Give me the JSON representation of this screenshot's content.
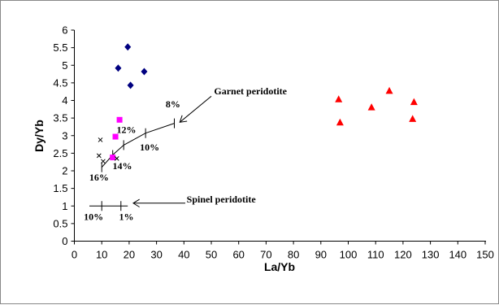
{
  "chart_data": {
    "type": "scatter",
    "xlabel": "La/Yb",
    "ylabel": "Dy/Yb",
    "xlim": [
      0,
      150
    ],
    "ylim": [
      0,
      6
    ],
    "x_ticks": [
      "0",
      "10",
      "20",
      "30",
      "40",
      "50",
      "60",
      "70",
      "80",
      "90",
      "100",
      "110",
      "120",
      "130",
      "140",
      "150"
    ],
    "y_ticks": [
      "0",
      "0.5",
      "1",
      "1.5",
      "2",
      "2.5",
      "3",
      "3.5",
      "4",
      "4.5",
      "5",
      "5.5",
      "6"
    ],
    "grid": false,
    "legend": "none",
    "series": [
      {
        "marker": "diamond",
        "color": "#000080",
        "points": [
          [
            19.5,
            5.52
          ],
          [
            16,
            4.92
          ],
          [
            25.5,
            4.82
          ],
          [
            20.5,
            4.43
          ]
        ]
      },
      {
        "marker": "square",
        "color": "#ff00ff",
        "points": [
          [
            16.5,
            3.45
          ],
          [
            15,
            2.97
          ],
          [
            14,
            2.38
          ]
        ]
      },
      {
        "marker": "x",
        "color": "#000000",
        "points": [
          [
            9.5,
            2.88
          ],
          [
            9,
            2.43
          ],
          [
            10.5,
            2.27
          ],
          [
            15.5,
            2.35
          ]
        ]
      },
      {
        "marker": "triangle",
        "color": "#ff0000",
        "points": [
          [
            96.5,
            4.03
          ],
          [
            97,
            3.37
          ],
          [
            108.5,
            3.8
          ],
          [
            115,
            4.27
          ],
          [
            124,
            3.95
          ],
          [
            123.5,
            3.47
          ]
        ]
      }
    ],
    "melting_curves": [
      {
        "label": "Garnet peridotite",
        "points": [
          [
            10,
            2.1
          ],
          [
            14,
            2.45
          ],
          [
            18,
            2.73
          ],
          [
            26,
            3.07
          ],
          [
            36.5,
            3.35
          ]
        ],
        "ticks": [
          [
            10,
            2.1
          ],
          [
            14,
            2.45
          ],
          [
            18,
            2.73
          ],
          [
            26,
            3.07
          ],
          [
            36.5,
            3.35
          ]
        ]
      },
      {
        "label": "Spinel peridotite",
        "points": [
          [
            5.5,
            1.0
          ],
          [
            19.5,
            1.0
          ]
        ],
        "ticks": [
          [
            10,
            1.0
          ],
          [
            17,
            1.0
          ]
        ]
      }
    ],
    "annotations": [
      {
        "text": "Garnet peridotite",
        "x": 51,
        "y": 4.17,
        "anchor": "start"
      },
      {
        "text": "Spinel peridotite",
        "x": 41,
        "y": 1.1,
        "anchor": "start"
      },
      {
        "text": "8%",
        "x": 36,
        "y": 3.8,
        "anchor": "middle"
      },
      {
        "text": "12%",
        "x": 19,
        "y": 3.08,
        "anchor": "middle"
      },
      {
        "text": "10%",
        "x": 27.5,
        "y": 2.58,
        "anchor": "middle"
      },
      {
        "text": "14%",
        "x": 17.5,
        "y": 2.05,
        "anchor": "middle"
      },
      {
        "text": "16%",
        "x": 9,
        "y": 1.72,
        "anchor": "middle"
      },
      {
        "text": "10%",
        "x": 7,
        "y": 0.6,
        "anchor": "middle"
      },
      {
        "text": "1%",
        "x": 19,
        "y": 0.6,
        "anchor": "middle"
      }
    ],
    "arrows": [
      {
        "from": [
          50,
          4.12
        ],
        "to": [
          38.5,
          3.38
        ]
      },
      {
        "from": [
          40.5,
          1.08
        ],
        "to": [
          21.5,
          1.08
        ]
      }
    ]
  }
}
